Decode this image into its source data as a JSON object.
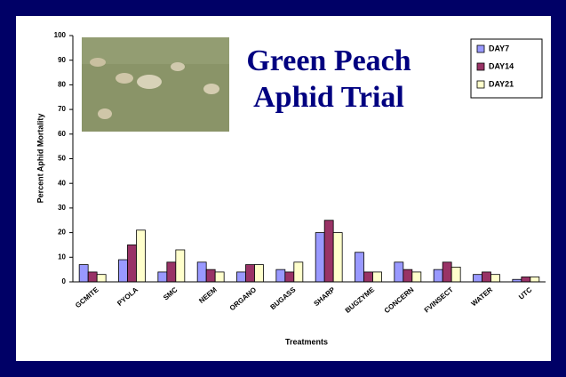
{
  "chart_data": {
    "type": "bar",
    "title": "Green Peach Aphid Trial",
    "x_label": "Treatments",
    "y_label": "Percent Aphid Mortality",
    "categories": [
      "GCMITE",
      "PYOLA",
      "SMC",
      "NEEM",
      "ORGANO",
      "BUGASS",
      "SHARP",
      "BUGZYME",
      "CONCERN",
      "FVINSECT",
      "WATER",
      "UTC"
    ],
    "series": [
      {
        "name": "DAY7",
        "color": "#9999ff",
        "values": [
          7,
          9,
          4,
          8,
          4,
          5,
          20,
          12,
          8,
          5,
          3,
          1
        ]
      },
      {
        "name": "DAY14",
        "color": "#993366",
        "values": [
          4,
          15,
          8,
          5,
          7,
          4,
          25,
          4,
          5,
          8,
          4,
          2
        ]
      },
      {
        "name": "DAY21",
        "color": "#ffffcc",
        "values": [
          3,
          21,
          13,
          4,
          7,
          8,
          20,
          4,
          4,
          6,
          3,
          2
        ]
      }
    ],
    "ylim": [
      0,
      100
    ],
    "yticks": [
      0,
      10,
      20,
      30,
      40,
      50,
      60,
      70,
      80,
      90,
      100
    ],
    "grid": false,
    "legend": "top-right"
  }
}
